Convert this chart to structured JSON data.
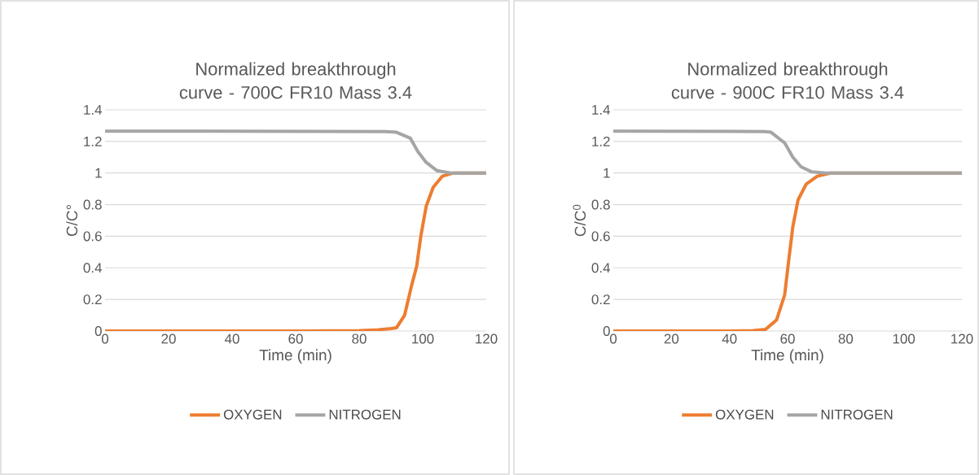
{
  "chart_data": [
    {
      "type": "line",
      "title": "Normalized breakthrough curve - 700C FR10 Mass 3.4",
      "xlabel": "Time (min)",
      "ylabel": "C/C°",
      "xlim": [
        0,
        120
      ],
      "ylim": [
        0,
        1.4
      ],
      "xticks": [
        0,
        20,
        40,
        60,
        80,
        100,
        120
      ],
      "yticks": [
        0,
        0.2,
        0.4,
        0.6,
        0.8,
        1,
        1.2,
        1.4
      ],
      "grid": "y",
      "legend": "bottom",
      "marker": "none",
      "line_style": "solid",
      "series": [
        {
          "name": "OXYGEN",
          "color": "#ed7d31",
          "x": [
            0,
            60,
            80,
            86,
            90,
            91.7,
            94.3,
            96.4,
            98.1,
            99.4,
            101.1,
            103.3,
            106.2,
            109.7,
            120
          ],
          "values": [
            0,
            0,
            0.003,
            0.008,
            0.015,
            0.02,
            0.1,
            0.28,
            0.41,
            0.6,
            0.79,
            0.91,
            0.98,
            1.0,
            1.0
          ]
        },
        {
          "name": "NITROGEN",
          "color": "#a5a5a5",
          "x": [
            0,
            60,
            88,
            91.7,
            96.1,
            98.5,
            101.1,
            104.5,
            108.8,
            120
          ],
          "values": [
            1.265,
            1.264,
            1.262,
            1.258,
            1.22,
            1.135,
            1.067,
            1.015,
            1.0,
            1.0
          ]
        }
      ]
    },
    {
      "type": "line",
      "title": "Normalized breakthrough curve - 900C FR10 Mass 3.4",
      "xlabel": "Time (min)",
      "ylabel": "C/C$^{0}$",
      "xlim": [
        0,
        120
      ],
      "ylim": [
        0,
        1.4
      ],
      "xticks": [
        0,
        20,
        40,
        60,
        80,
        100,
        120
      ],
      "yticks": [
        0,
        0.2,
        0.4,
        0.6,
        0.8,
        1,
        1.2,
        1.4
      ],
      "grid": "y",
      "legend": "bottom",
      "marker": "none",
      "line_style": "solid",
      "series": [
        {
          "name": "OXYGEN",
          "color": "#ed7d31",
          "x": [
            0,
            40,
            48,
            52.4,
            56.2,
            59.0,
            60.4,
            61.8,
            63.6,
            66.4,
            70.2,
            74.9,
            120
          ],
          "values": [
            0,
            0,
            0.003,
            0.01,
            0.07,
            0.23,
            0.45,
            0.66,
            0.83,
            0.93,
            0.98,
            1.0,
            1.0
          ]
        },
        {
          "name": "NITROGEN",
          "color": "#a5a5a5",
          "x": [
            0,
            40,
            52,
            54.3,
            59.0,
            61.8,
            64.6,
            68.3,
            73.0,
            120
          ],
          "values": [
            1.265,
            1.264,
            1.262,
            1.258,
            1.19,
            1.1,
            1.04,
            1.007,
            1.0,
            1.0
          ]
        }
      ]
    }
  ]
}
